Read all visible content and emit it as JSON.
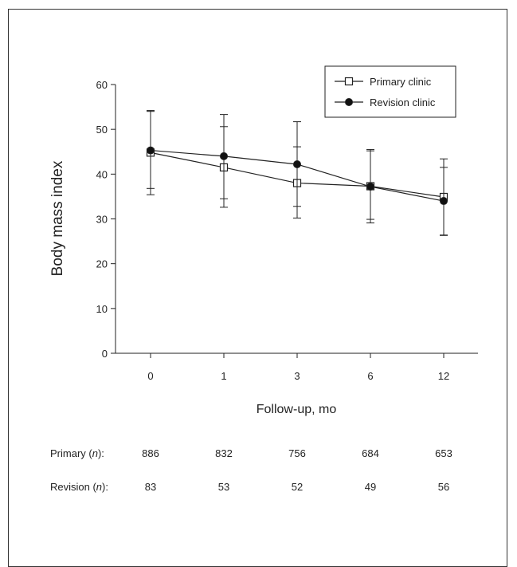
{
  "chart_data": {
    "type": "line",
    "categories": [
      "0",
      "1",
      "3",
      "6",
      "12"
    ],
    "xlabel": "Follow-up, mo",
    "ylabel": "Body mass index",
    "ylim": [
      0,
      60
    ],
    "yticks": [
      0,
      10,
      20,
      30,
      40,
      50,
      60
    ],
    "grid": false,
    "legend_position": "top-right",
    "series": [
      {
        "name": "Primary clinic",
        "marker": "open-square",
        "values": [
          44.8,
          41.5,
          38.0,
          37.3,
          34.9
        ],
        "error_low": [
          36.8,
          34.5,
          32.8,
          29.9,
          26.4
        ],
        "error_high": [
          54.2,
          50.6,
          46.1,
          45.2,
          43.4
        ]
      },
      {
        "name": "Revision clinic",
        "marker": "filled-circle",
        "values": [
          45.3,
          44.0,
          42.2,
          37.2,
          34.0
        ],
        "error_low": [
          35.4,
          32.6,
          30.2,
          29.1,
          26.3
        ],
        "error_high": [
          54.0,
          53.3,
          51.7,
          45.5,
          41.5
        ]
      }
    ]
  },
  "counts": {
    "primary_label_pre": "Primary (",
    "revision_label_pre": "Revision (",
    "n_symbol": "n",
    "label_post": "):",
    "primary": [
      "886",
      "832",
      "756",
      "684",
      "653"
    ],
    "revision": [
      "83",
      "53",
      "52",
      "49",
      "56"
    ]
  },
  "colors": {
    "line": "#222222",
    "axis": "#222222",
    "marker_fill_primary": "#ffffff",
    "marker_fill_revision": "#111111"
  }
}
